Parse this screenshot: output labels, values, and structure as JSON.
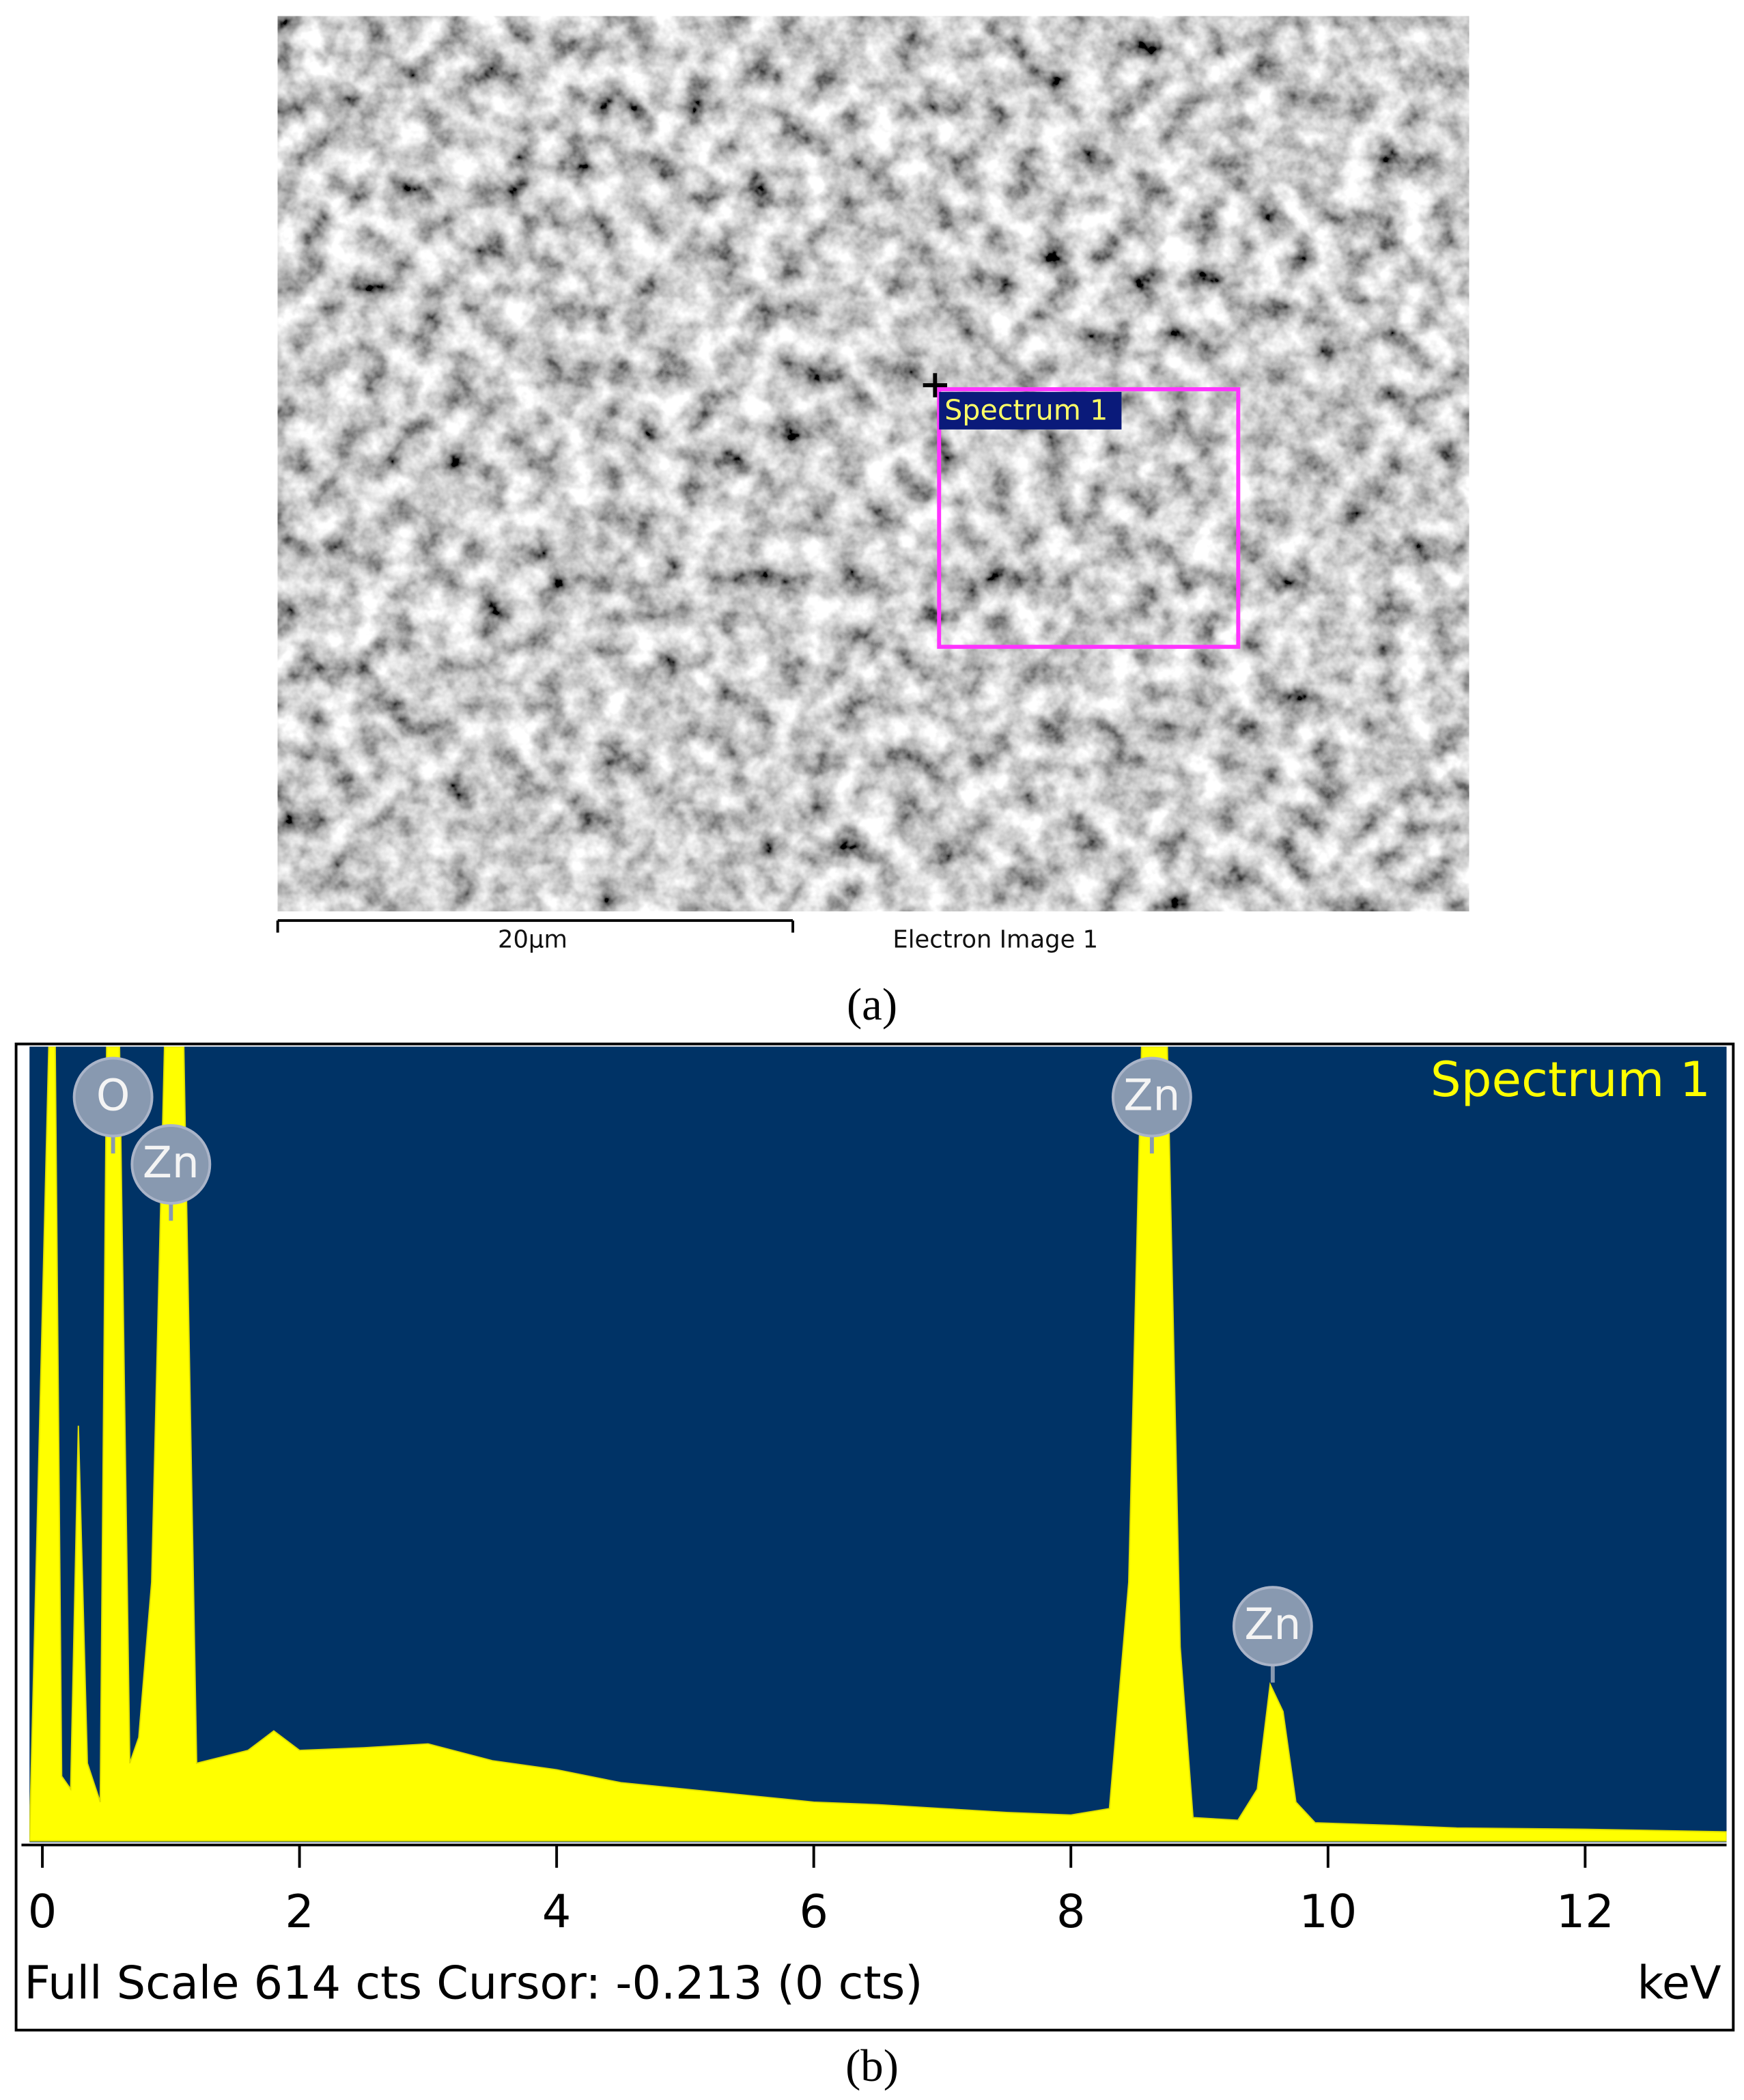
{
  "panel_a": {
    "caption": "(a)",
    "scale_bar_label": "20µm",
    "image_label": "Electron Image 1",
    "region_label": "Spectrum 1"
  },
  "panel_b": {
    "caption": "(b)",
    "status_text": "Full Scale 614 cts Cursor: -0.213  (0 cts)"
  },
  "chart_data": {
    "type": "area",
    "x_label": "keV",
    "xlim": [
      -0.1,
      13.1
    ],
    "ylim": [
      0,
      614
    ],
    "xticks": [
      0,
      2,
      4,
      6,
      8,
      10,
      12
    ],
    "x": [
      -0.1,
      0.05,
      0.1,
      0.15,
      0.22,
      0.28,
      0.35,
      0.45,
      0.5,
      0.55,
      0.6,
      0.68,
      0.75,
      0.85,
      0.95,
      1.0,
      1.05,
      1.1,
      1.2,
      1.4,
      1.6,
      1.8,
      2.0,
      2.5,
      3.0,
      3.5,
      4.0,
      4.5,
      5.0,
      5.5,
      6.0,
      6.5,
      7.0,
      7.5,
      8.0,
      8.3,
      8.45,
      8.55,
      8.63,
      8.75,
      8.85,
      8.95,
      9.3,
      9.45,
      9.55,
      9.65,
      9.75,
      9.9,
      10.5,
      11,
      12,
      13.1
    ],
    "series": [
      {
        "name": "Spectrum 1",
        "color": "#ffff00",
        "values": [
          0,
          614,
          614,
          50,
          40,
          321,
          60,
          30,
          614,
          614,
          614,
          60,
          80,
          200,
          614,
          614,
          614,
          614,
          60,
          65,
          70,
          85,
          70,
          72,
          75,
          62,
          55,
          45,
          40,
          35,
          30,
          28,
          25,
          22,
          20,
          25,
          200,
          614,
          614,
          614,
          150,
          18,
          16,
          40,
          121,
          100,
          30,
          14,
          12,
          10,
          9,
          7
        ]
      }
    ],
    "annotations": [
      {
        "text": "O",
        "x": 0.55,
        "y": 575
      },
      {
        "text": "Zn",
        "x": 1.0,
        "y": 523
      },
      {
        "text": "Zn",
        "x": 8.63,
        "y": 575
      },
      {
        "text": "Zn",
        "x": 9.57,
        "y": 166
      }
    ]
  }
}
